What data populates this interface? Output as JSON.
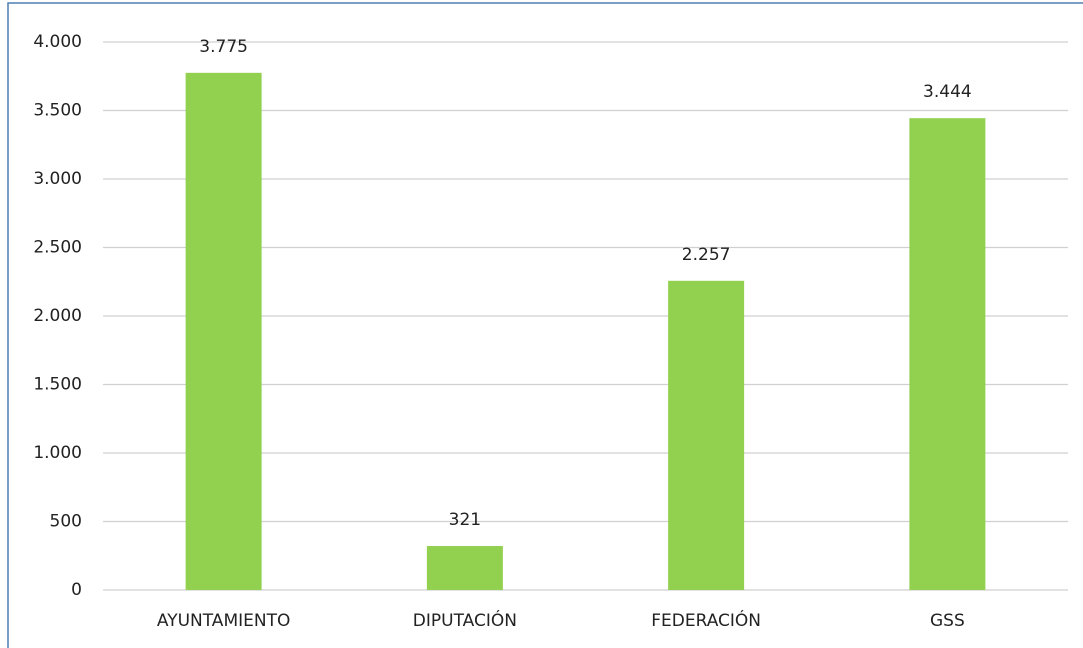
{
  "chart_data": {
    "type": "bar",
    "categories": [
      "AYUNTAMIENTO",
      "DIPUTACIÓN",
      "FEDERACIÓN",
      "GSS"
    ],
    "values": [
      3775,
      321,
      2257,
      3444
    ],
    "value_labels": [
      "3.775",
      "321",
      "2.257",
      "3.444"
    ],
    "color": "#92d050",
    "ylim": [
      0,
      4000
    ],
    "yticks": [
      0,
      500,
      {
        "value": 1000,
        "label": "1.000"
      },
      {
        "value": 1500,
        "label": "1.500"
      },
      {
        "value": 2000,
        "label": "2.000"
      },
      {
        "value": 2500,
        "label": "2.500"
      },
      {
        "value": 3000,
        "label": "3.000"
      },
      {
        "value": 3500,
        "label": "3.500"
      },
      {
        "value": 4000,
        "label": "4.000"
      }
    ],
    "grid": true
  }
}
